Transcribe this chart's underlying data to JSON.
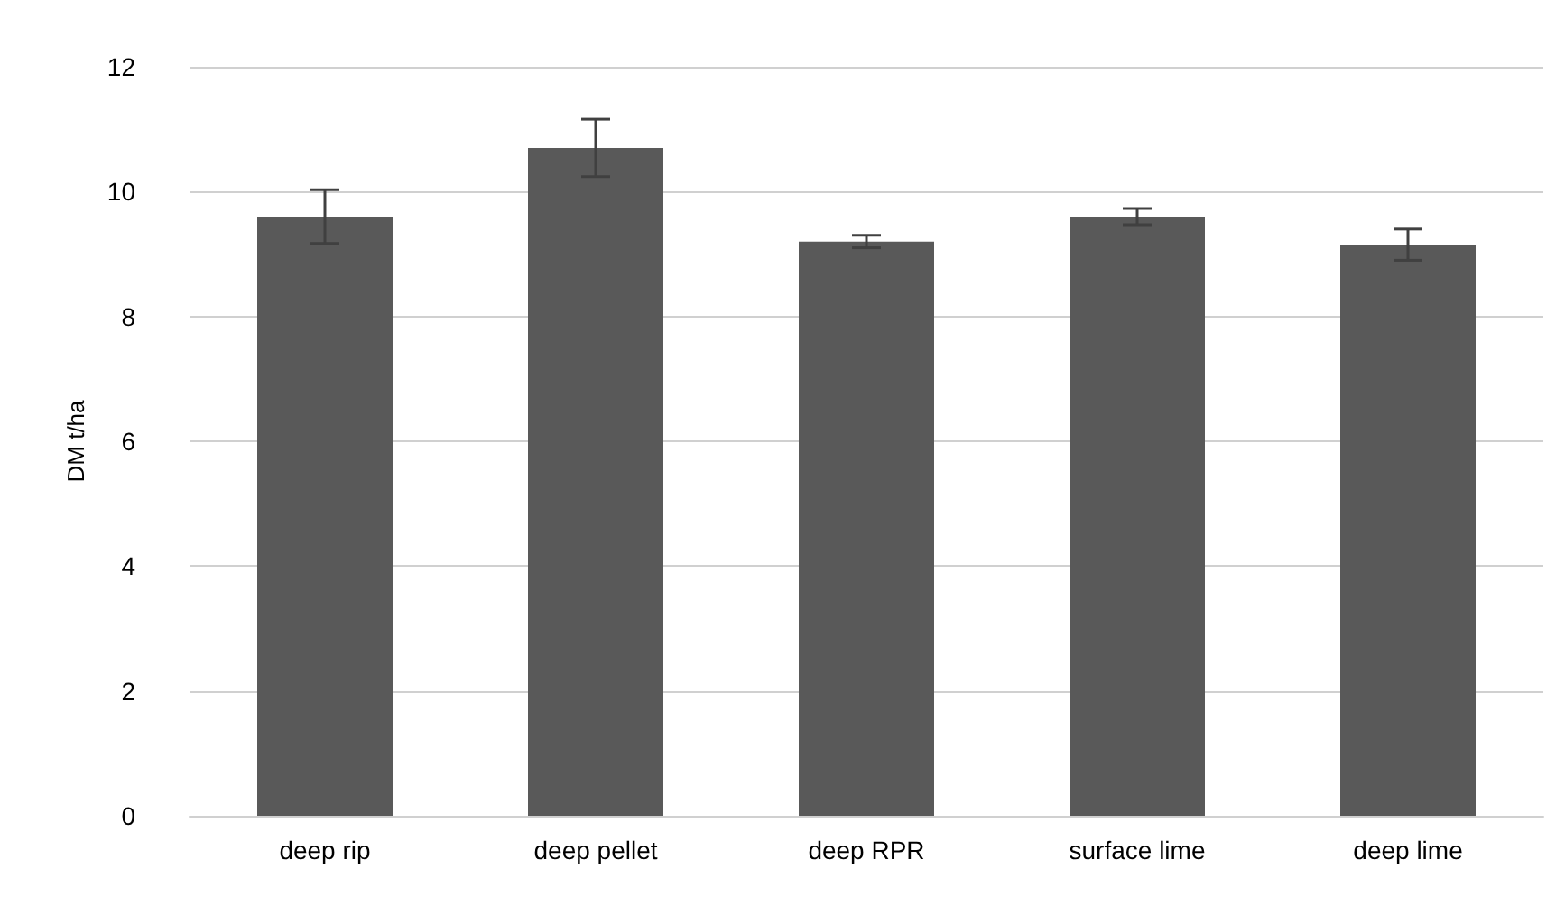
{
  "chart_data": {
    "type": "bar",
    "ylabel": "DM t/ha",
    "categories": [
      "deep rip",
      "deep pellet",
      "deep RPR",
      "surface lime",
      "deep lime"
    ],
    "values": [
      9.6,
      10.7,
      9.2,
      9.6,
      9.15
    ],
    "errors": [
      0.43,
      0.46,
      0.1,
      0.13,
      0.25
    ],
    "color": "#595959",
    "ylim": [
      0,
      12
    ],
    "yticks": [
      0,
      2,
      4,
      6,
      8,
      10,
      12
    ],
    "grid": "y"
  }
}
